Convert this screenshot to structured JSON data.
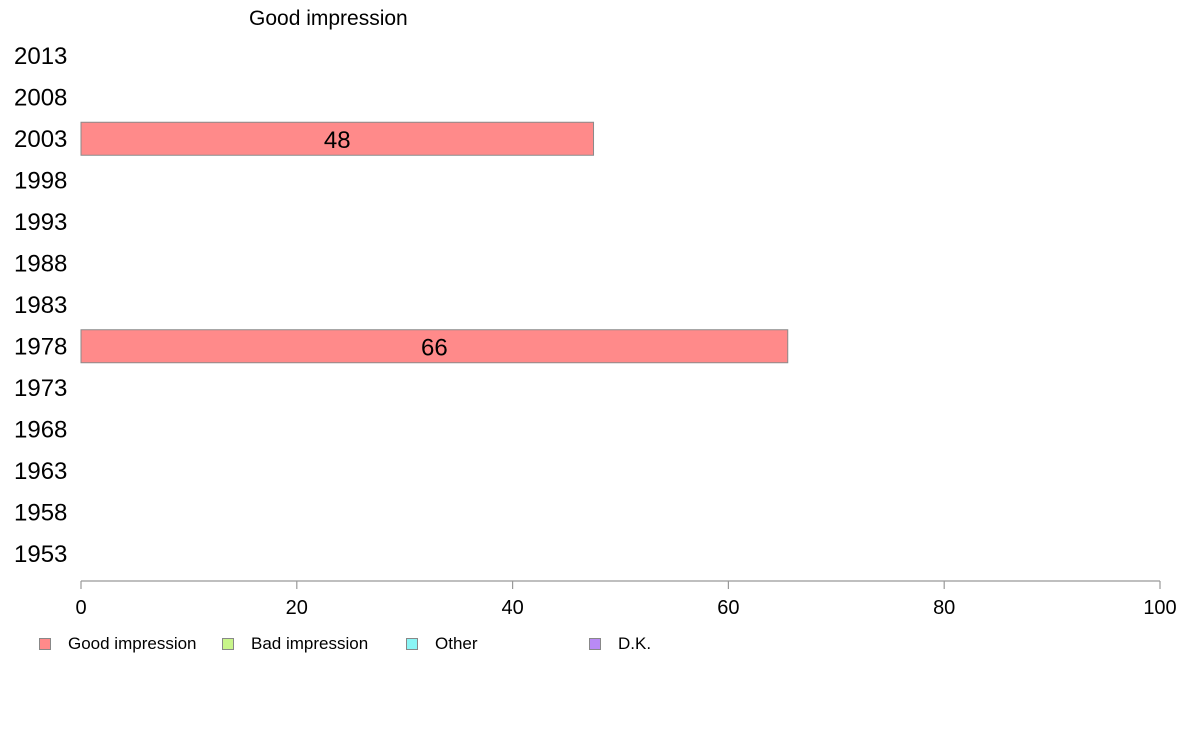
{
  "chart_data": {
    "type": "bar",
    "orientation": "horizontal",
    "title": "Good impression",
    "categories": [
      "2013",
      "2008",
      "2003",
      "1998",
      "1993",
      "1988",
      "1983",
      "1978",
      "1973",
      "1968",
      "1963",
      "1958",
      "1953"
    ],
    "series": [
      {
        "name": "Good impression",
        "color": "#ff8a8a",
        "values": [
          null,
          null,
          47.5,
          null,
          null,
          null,
          null,
          65.5,
          null,
          null,
          null,
          null,
          null
        ],
        "labels": [
          null,
          null,
          "48",
          null,
          null,
          null,
          null,
          "66",
          null,
          null,
          null,
          null,
          null
        ]
      }
    ],
    "xlim": [
      0,
      100
    ],
    "xticks": [
      "0",
      "20",
      "40",
      "60",
      "80",
      "100"
    ],
    "grid": false,
    "legend_position": "bottom"
  },
  "legend": [
    {
      "label": "Good impression",
      "color": "#ff8a8a"
    },
    {
      "label": "Bad impression",
      "color": "#c8f58a"
    },
    {
      "label": "Other",
      "color": "#8af5f5"
    },
    {
      "label": "D.K.",
      "color": "#b98af5"
    }
  ]
}
